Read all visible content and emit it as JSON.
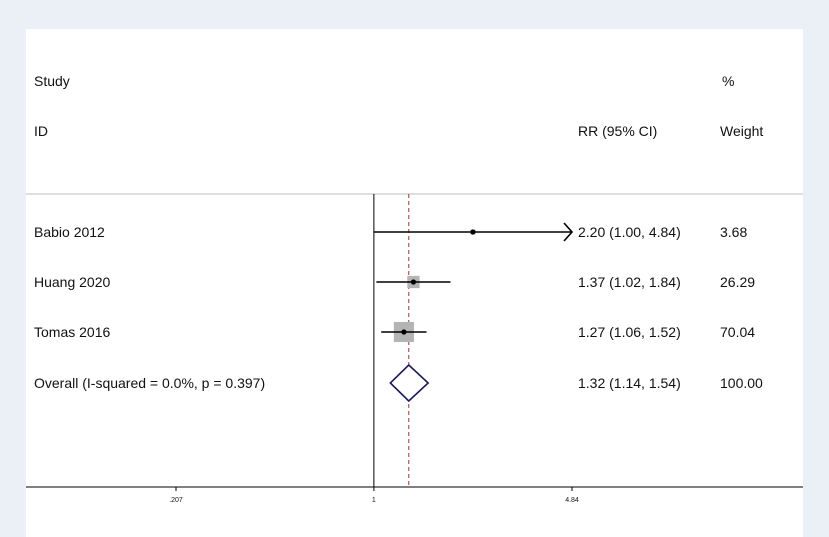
{
  "header": {
    "study_line1": "Study",
    "study_line2": "ID",
    "effect_label": "RR (95% CI)",
    "weight_line1": "%",
    "weight_line2": "Weight"
  },
  "colors": {
    "page_background": "#eaf0f6",
    "panel_background": "#ffffff",
    "weight_box": "#b4b4b4",
    "diamond_stroke": "#1a1a5e",
    "overall_line": "#b03030",
    "ink": "#000000"
  },
  "chart_data": {
    "type": "forest",
    "x_scale": "log",
    "xlim": [
      0.207,
      4.84
    ],
    "x_ticks": [
      {
        "value": 0.207,
        "label": ".207"
      },
      {
        "value": 1,
        "label": "1"
      },
      {
        "value": 4.84,
        "label": "4.84"
      }
    ],
    "null_value": 1,
    "studies": [
      {
        "label": "Babio 2012",
        "rr": 2.2,
        "lower": 1.0,
        "upper": 4.84,
        "ci_text": "2.20 (1.00, 4.84)",
        "weight": 3.68,
        "weight_text": "3.68",
        "arrow_right": true
      },
      {
        "label": "Huang 2020",
        "rr": 1.37,
        "lower": 1.02,
        "upper": 1.84,
        "ci_text": "1.37 (1.02, 1.84)",
        "weight": 26.29,
        "weight_text": "26.29",
        "arrow_right": false
      },
      {
        "label": "Tomas 2016",
        "rr": 1.27,
        "lower": 1.06,
        "upper": 1.52,
        "ci_text": "1.27 (1.06, 1.52)",
        "weight": 70.04,
        "weight_text": "70.04",
        "arrow_right": false
      }
    ],
    "overall": {
      "label": "Overall  (I-squared = 0.0%, p = 0.397)",
      "rr": 1.32,
      "lower": 1.14,
      "upper": 1.54,
      "ci_text": "1.32 (1.14, 1.54)",
      "weight_text": "100.00"
    }
  }
}
